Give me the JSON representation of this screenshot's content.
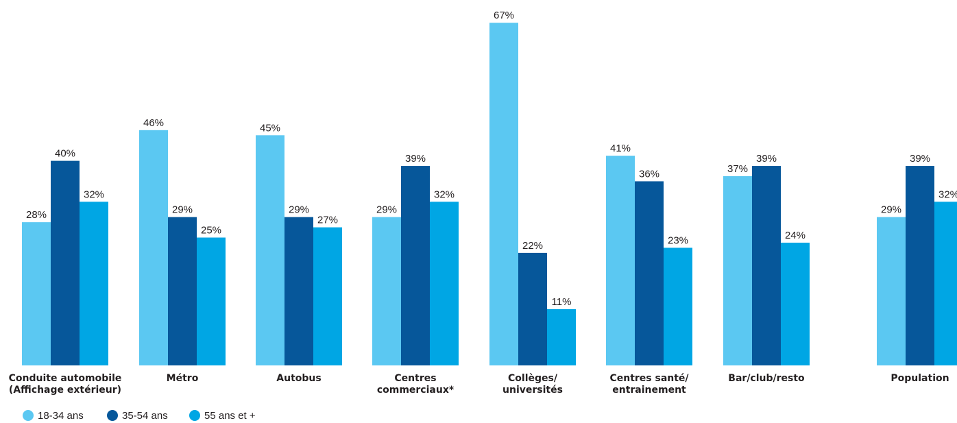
{
  "chart_data": {
    "type": "bar",
    "categories": [
      [
        "Conduite automobile",
        "(Affichage extérieur)"
      ],
      [
        "Métro"
      ],
      [
        "Autobus"
      ],
      [
        "Centres",
        "commerciaux*"
      ],
      [
        "Collèges/",
        "universités"
      ],
      [
        "Centres santé/",
        "entrainement"
      ],
      [
        "Bar/club/resto"
      ],
      [
        "Population"
      ]
    ],
    "series": [
      {
        "name": "18-34 ans",
        "color": "#5bc8f2",
        "values": [
          28,
          46,
          45,
          29,
          67,
          41,
          37,
          29
        ],
        "labels": [
          "28%",
          "46%",
          "45%",
          "29%",
          "67%",
          "41%",
          "37%",
          "29%"
        ]
      },
      {
        "name": "35-54 ans",
        "color": "#06579a",
        "values": [
          40,
          29,
          29,
          39,
          22,
          36,
          39,
          39
        ],
        "labels": [
          "40%",
          "29%",
          "29%",
          "39%",
          "22%",
          "36%",
          "39%",
          "39%"
        ]
      },
      {
        "name": "55 ans et +",
        "color": "#00a6e4",
        "values": [
          32,
          25,
          27,
          32,
          11,
          23,
          24,
          32
        ],
        "labels": [
          "32%",
          "25%",
          "27%",
          "32%",
          "11%",
          "23%",
          "24%",
          "32%"
        ]
      }
    ],
    "unit": "%",
    "legend_position": "bottom-left",
    "grid": false,
    "ylim": [
      0,
      70
    ]
  }
}
